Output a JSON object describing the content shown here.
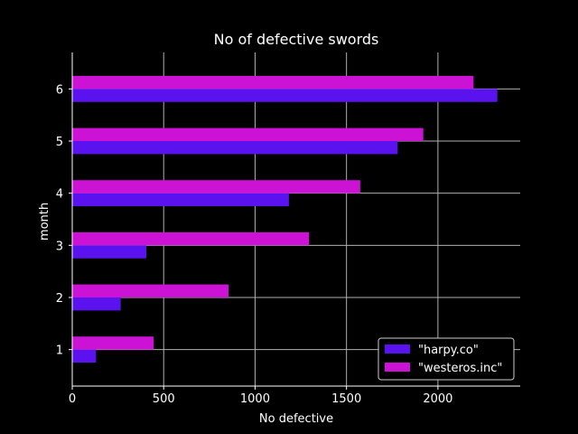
{
  "chart_data": {
    "type": "bar",
    "orientation": "horizontal",
    "title": "No of defective swords",
    "xlabel": "No defective",
    "ylabel": "month",
    "categories": [
      "1",
      "2",
      "3",
      "4",
      "5",
      "6"
    ],
    "series": [
      {
        "name": "\"harpy.co\"",
        "color": "#5a12ee",
        "values": [
          130,
          265,
          405,
          1185,
          1780,
          2325
        ]
      },
      {
        "name": "\"westeros.inc\"",
        "color": "#cc12d4",
        "values": [
          445,
          855,
          1295,
          1575,
          1920,
          2195
        ]
      }
    ],
    "xlim": [
      0,
      2450
    ],
    "xticks": [
      0,
      500,
      1000,
      1500,
      2000
    ],
    "grid": true,
    "legend_position": "bottom-right",
    "background": "#000000",
    "foreground": "#ffffff",
    "grid_color": "#b0b0b0"
  }
}
